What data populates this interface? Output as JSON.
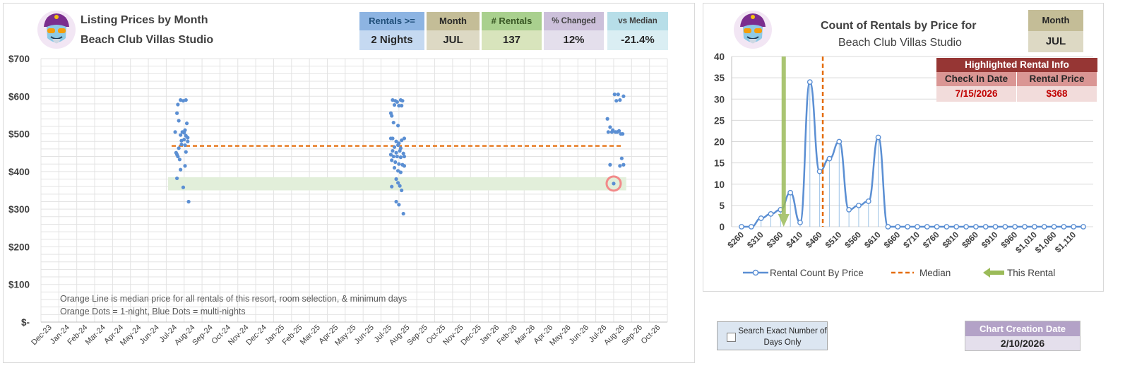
{
  "left": {
    "title_line1": "Listing Prices by Month",
    "title_line2": "Beach Club Villas Studio",
    "tiles": [
      {
        "header": "Rentals >=",
        "value": "2 Nights",
        "head_bg": "#8db4e2",
        "val_bg": "#c5d9f1",
        "head_color": "#1f4e79"
      },
      {
        "header": "Month",
        "value": "JUL",
        "head_bg": "#c4bd97",
        "val_bg": "#ddd9c4",
        "head_color": "#262626"
      },
      {
        "header": "# Rentals",
        "value": "137",
        "head_bg": "#a9d08e",
        "val_bg": "#d8e4bc",
        "head_color": "#375623"
      },
      {
        "header": "% Changed",
        "value": "12%",
        "head_bg": "#ccc0da",
        "val_bg": "#e4dfec",
        "head_color": "#404040"
      },
      {
        "header": "vs Median",
        "value": "-21.4%",
        "head_bg": "#b7dee8",
        "val_bg": "#daeef3",
        "head_color": "#404040"
      }
    ],
    "notes": [
      "Orange Line is median price for all rentals of this resort, room selection, & minimum days",
      "Orange Dots = 1-night, Blue Dots = multi-nights"
    ]
  },
  "right": {
    "title_line1": "Count of Rentals by Price for",
    "title_line2": "Beach Club Villas Studio",
    "month_tile": {
      "header": "Month",
      "value": "JUL"
    },
    "highlight": {
      "title": "Highlighted Rental Info",
      "col1_header": "Check In Date",
      "col2_header": "Rental Price",
      "col1_value": "7/15/2026",
      "col2_value": "$368"
    },
    "legend": {
      "series": "Rental Count By Price",
      "median": "Median",
      "this": "This Rental"
    }
  },
  "search_label": "Search Exact Number of Days Only",
  "creation": {
    "header": "Chart Creation Date",
    "value": "2/10/2026"
  },
  "colors": {
    "blue": "#5b8fd3",
    "orange": "#e46c0a",
    "green": "#9bbb59",
    "band": "#e2efda",
    "highlight_ring": "#f28a8a"
  },
  "chart_data": [
    {
      "type": "scatter",
      "title": "Listing Prices by Month",
      "ylim": [
        0,
        700
      ],
      "y_ticks": [
        0,
        100,
        200,
        300,
        400,
        500,
        600,
        700
      ],
      "y_tick_labels": [
        "$-",
        "$100",
        "$200",
        "$300",
        "$400",
        "$500",
        "$600",
        "$700"
      ],
      "x_tick_labels": [
        "Dec-23",
        "Jan-24",
        "Feb-24",
        "Mar-24",
        "Apr-24",
        "May-24",
        "Jun-24",
        "Jul-24",
        "Aug-24",
        "Sep-24",
        "Oct-24",
        "Nov-24",
        "Dec-24",
        "Jan-25",
        "Feb-25",
        "Mar-25",
        "Apr-25",
        "May-25",
        "Jun-25",
        "Jul-25",
        "Aug-25",
        "Sep-25",
        "Oct-25",
        "Nov-25",
        "Dec-25",
        "Jan-26",
        "Feb-26",
        "Mar-26",
        "Apr-26",
        "May-26",
        "Jun-26",
        "Jul-26",
        "Aug-26",
        "Sep-26",
        "Oct-26"
      ],
      "median": 468,
      "band": [
        350,
        385
      ],
      "highlight_point": {
        "month": 31.5,
        "price": 368
      },
      "series": [
        {
          "points": [
            [
              7.0,
              505
            ],
            [
              7.1,
              555
            ],
            [
              7.15,
              578
            ],
            [
              7.3,
              590
            ],
            [
              7.45,
              588
            ],
            [
              7.6,
              590
            ],
            [
              7.2,
              535
            ],
            [
              7.3,
              497
            ],
            [
              7.4,
              505
            ],
            [
              7.5,
              503
            ],
            [
              7.6,
              495
            ],
            [
              7.55,
              510
            ],
            [
              7.65,
              528
            ],
            [
              7.7,
              490
            ],
            [
              7.35,
              482
            ],
            [
              7.5,
              485
            ],
            [
              7.7,
              480
            ],
            [
              7.1,
              445
            ],
            [
              7.2,
              462
            ],
            [
              7.35,
              472
            ],
            [
              7.55,
              470
            ],
            [
              7.25,
              432
            ],
            [
              7.15,
              440
            ],
            [
              7.05,
              450
            ],
            [
              7.6,
              452
            ],
            [
              7.55,
              415
            ],
            [
              7.3,
              405
            ],
            [
              7.1,
              382
            ],
            [
              7.45,
              358
            ],
            [
              7.75,
              320
            ],
            [
              19.05,
              555
            ],
            [
              19.15,
              590
            ],
            [
              19.3,
              588
            ],
            [
              19.4,
              585
            ],
            [
              19.6,
              590
            ],
            [
              19.7,
              588
            ],
            [
              19.25,
              577
            ],
            [
              19.5,
              575
            ],
            [
              19.65,
              575
            ],
            [
              19.1,
              548
            ],
            [
              19.2,
              530
            ],
            [
              19.45,
              522
            ],
            [
              19.05,
              488
            ],
            [
              19.15,
              488
            ],
            [
              19.35,
              480
            ],
            [
              19.5,
              475
            ],
            [
              19.65,
              483
            ],
            [
              19.8,
              488
            ],
            [
              19.25,
              465
            ],
            [
              19.45,
              470
            ],
            [
              19.6,
              462
            ],
            [
              19.15,
              455
            ],
            [
              19.35,
              450
            ],
            [
              19.55,
              455
            ],
            [
              19.75,
              448
            ],
            [
              19.05,
              445
            ],
            [
              19.2,
              440
            ],
            [
              19.4,
              440
            ],
            [
              19.6,
              438
            ],
            [
              19.8,
              440
            ],
            [
              19.1,
              430
            ],
            [
              19.3,
              425
            ],
            [
              19.5,
              420
            ],
            [
              19.7,
              418
            ],
            [
              19.8,
              415
            ],
            [
              19.25,
              410
            ],
            [
              19.45,
              402
            ],
            [
              19.6,
              398
            ],
            [
              19.35,
              380
            ],
            [
              19.45,
              370
            ],
            [
              19.1,
              360
            ],
            [
              19.55,
              362
            ],
            [
              19.35,
              320
            ],
            [
              19.5,
              312
            ],
            [
              19.75,
              288
            ],
            [
              19.65,
              350
            ],
            [
              31.15,
              540
            ],
            [
              31.3,
              518
            ],
            [
              31.45,
              510
            ],
            [
              31.7,
              505
            ],
            [
              31.55,
              605
            ],
            [
              31.75,
              605
            ],
            [
              31.85,
              590
            ],
            [
              31.65,
              588
            ],
            [
              32.05,
              600
            ],
            [
              31.2,
              505
            ],
            [
              31.4,
              505
            ],
            [
              31.6,
              505
            ],
            [
              31.8,
              508
            ],
            [
              31.9,
              500
            ],
            [
              32.0,
              500
            ],
            [
              31.95,
              435
            ],
            [
              32.05,
              418
            ],
            [
              31.85,
              415
            ],
            [
              31.3,
              418
            ],
            [
              31.5,
              368
            ]
          ]
        }
      ]
    },
    {
      "type": "line",
      "title": "Count of Rentals by Price for",
      "ylim": [
        0,
        40
      ],
      "y_ticks": [
        0,
        5,
        10,
        15,
        20,
        25,
        30,
        35,
        40
      ],
      "x": [
        260,
        285,
        310,
        335,
        360,
        385,
        410,
        435,
        460,
        485,
        510,
        535,
        560,
        585,
        610,
        635,
        660,
        685,
        710,
        735,
        760,
        785,
        810,
        835,
        860,
        885,
        910,
        935,
        960,
        985,
        1010,
        1035,
        1060,
        1085,
        1110,
        1135
      ],
      "x_tick_labels": [
        "$260",
        "$310",
        "$360",
        "$410",
        "$460",
        "$510",
        "$560",
        "$610",
        "$660",
        "$710",
        "$760",
        "$810",
        "$860",
        "$910",
        "$960",
        "$1,010",
        "$1,060",
        "$1,110"
      ],
      "series": [
        {
          "name": "Rental Count By Price",
          "values": [
            0,
            0,
            2,
            3,
            4,
            8,
            1,
            34,
            13,
            16,
            20,
            4,
            5,
            6,
            21,
            0,
            0,
            0,
            0,
            0,
            0,
            0,
            0,
            0,
            0,
            0,
            0,
            0,
            0,
            0,
            0,
            0,
            0,
            0,
            0,
            0
          ]
        }
      ],
      "median": 468,
      "this_rental": 368
    }
  ]
}
